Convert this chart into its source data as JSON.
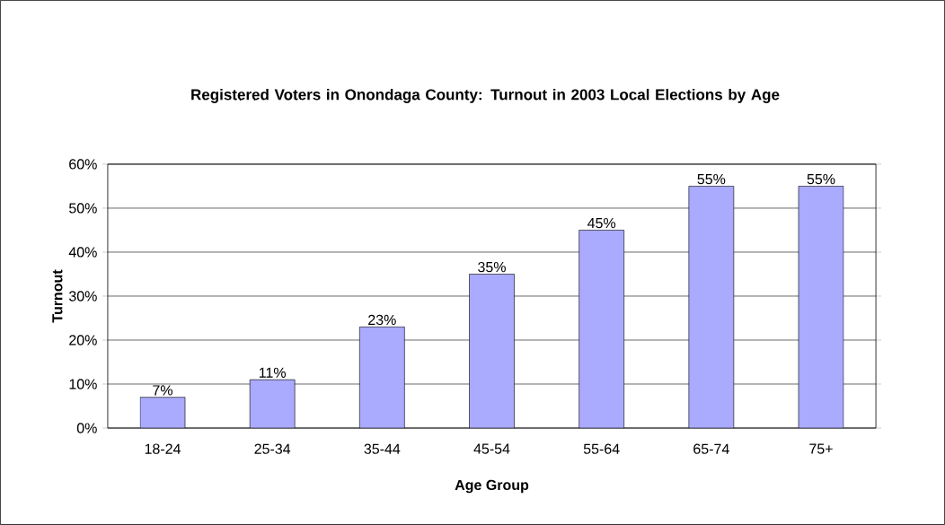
{
  "chart_data": {
    "type": "bar",
    "title": "Registered Voters in Onondaga County: Turnout in 2003 Local Elections by Age",
    "xlabel": "Age Group",
    "ylabel": "Turnout",
    "categories": [
      "18-24",
      "25-34",
      "35-44",
      "45-54",
      "55-64",
      "65-74",
      "75+"
    ],
    "values": [
      7,
      11,
      23,
      35,
      45,
      55,
      55
    ],
    "value_labels": [
      "7%",
      "11%",
      "23%",
      "35%",
      "45%",
      "55%",
      "55%"
    ],
    "color": "#aaaaff",
    "ylim": [
      0,
      60
    ],
    "yticks": [
      {
        "value": 0,
        "label": "0%"
      },
      {
        "value": 10,
        "label": "10%"
      },
      {
        "value": 20,
        "label": "20%"
      },
      {
        "value": 30,
        "label": "30%"
      },
      {
        "value": 40,
        "label": "40%"
      },
      {
        "value": 50,
        "label": "50%"
      },
      {
        "value": 60,
        "label": "60%"
      }
    ],
    "grid": "y"
  }
}
